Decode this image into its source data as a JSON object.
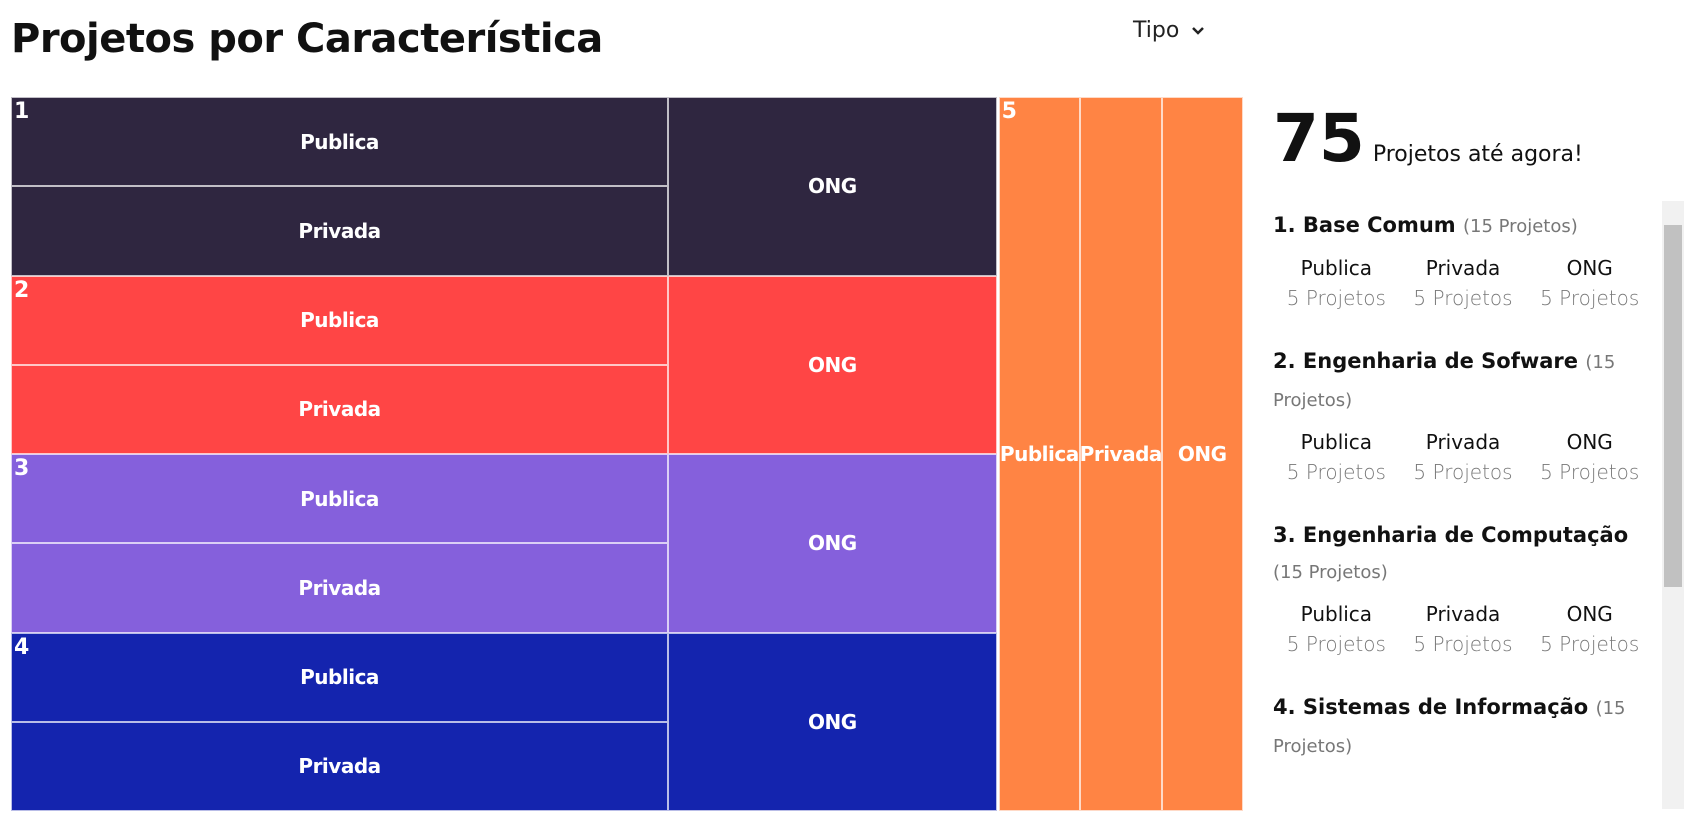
{
  "header": {
    "title": "Projetos por Característica",
    "filter": "Tipo"
  },
  "treemap": {
    "groups": [
      {
        "label": "1",
        "color": "#2f2640",
        "children": [
          {
            "name": "Publica",
            "value": 5
          },
          {
            "name": "Privada",
            "value": 5
          },
          {
            "name": "ONG",
            "value": 5
          }
        ]
      },
      {
        "label": "2",
        "color": "#ff4545",
        "children": [
          {
            "name": "Publica",
            "value": 5
          },
          {
            "name": "Privada",
            "value": 5
          },
          {
            "name": "ONG",
            "value": 5
          }
        ]
      },
      {
        "label": "3",
        "color": "#8560dc",
        "children": [
          {
            "name": "Publica",
            "value": 5
          },
          {
            "name": "Privada",
            "value": 5
          },
          {
            "name": "ONG",
            "value": 5
          }
        ]
      },
      {
        "label": "4",
        "color": "#1424ae",
        "children": [
          {
            "name": "Publica",
            "value": 5
          },
          {
            "name": "Privada",
            "value": 5
          },
          {
            "name": "ONG",
            "value": 5
          }
        ]
      },
      {
        "label": "5",
        "color": "#ff8444",
        "children": [
          {
            "name": "Publica",
            "value": 5
          },
          {
            "name": "Privada",
            "value": 5
          },
          {
            "name": "ONG",
            "value": 5
          }
        ]
      }
    ]
  },
  "summary": {
    "total": 75,
    "caption": "Projetos até agora!",
    "items": [
      {
        "title": "1. Base Comum",
        "count": "(15 Projetos)",
        "children": [
          {
            "name": "Publica",
            "count": "5 Projetos"
          },
          {
            "name": "Privada",
            "count": "5 Projetos"
          },
          {
            "name": "ONG",
            "count": "5 Projetos"
          }
        ]
      },
      {
        "title": "2. Engenharia de Sofware",
        "count": "(15 Projetos)",
        "children": [
          {
            "name": "Publica",
            "count": "5 Projetos"
          },
          {
            "name": "Privada",
            "count": "5 Projetos"
          },
          {
            "name": "ONG",
            "count": "5 Projetos"
          }
        ]
      },
      {
        "title": "3. Engenharia de Computação",
        "count": "(15 Projetos)",
        "children": [
          {
            "name": "Publica",
            "count": "5 Projetos"
          },
          {
            "name": "Privada",
            "count": "5 Projetos"
          },
          {
            "name": "ONG",
            "count": "5 Projetos"
          }
        ]
      },
      {
        "title": "4. Sistemas de Informação",
        "count": "(15 Projetos)",
        "children": []
      }
    ]
  }
}
